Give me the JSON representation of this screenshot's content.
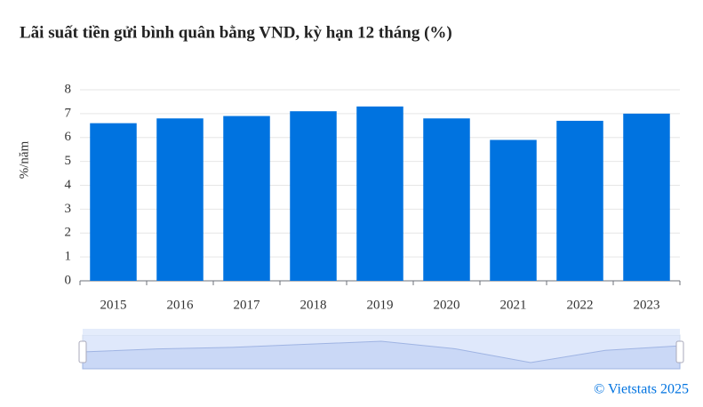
{
  "chart_data": {
    "type": "bar",
    "title": "Lãi suất tiền gửi bình quân bằng VND, kỳ hạn 12 tháng (%)",
    "y_label": "%/năm",
    "categories": [
      "2015",
      "2016",
      "2017",
      "2018",
      "2019",
      "2020",
      "2021",
      "2022",
      "2023"
    ],
    "values": [
      6.6,
      6.8,
      6.9,
      7.1,
      7.3,
      6.8,
      5.9,
      6.7,
      7.0
    ],
    "color": "#0073e0",
    "ylim": [
      0,
      8
    ],
    "yticks": [
      0,
      1,
      2,
      3,
      4,
      5,
      6,
      7,
      8
    ],
    "grid": true,
    "source": "© Vietstats 2025"
  }
}
